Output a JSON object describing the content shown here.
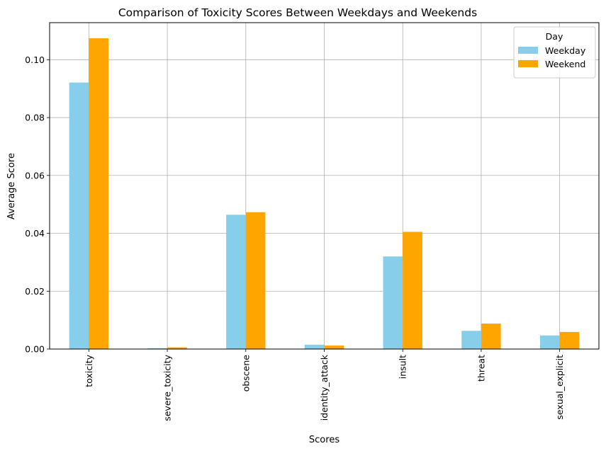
{
  "chart_data": {
    "type": "bar",
    "title": "Comparison of Toxicity Scores Between Weekdays and Weekends",
    "xlabel": "Scores",
    "ylabel": "Average Score",
    "categories": [
      "toxicity",
      "severe_toxicity",
      "obscene",
      "identity_attack",
      "insult",
      "threat",
      "sexual_explicit"
    ],
    "series": [
      {
        "name": "Weekday",
        "color": "#87ceeb",
        "values": [
          0.0921,
          0.0003,
          0.0464,
          0.0015,
          0.032,
          0.0063,
          0.0047
        ]
      },
      {
        "name": "Weekend",
        "color": "#ffa500",
        "values": [
          0.1074,
          0.0006,
          0.0473,
          0.0012,
          0.0405,
          0.0088,
          0.0059
        ]
      }
    ],
    "ylim": [
      0,
      0.1128
    ],
    "yticks": [
      0.0,
      0.02,
      0.04,
      0.06,
      0.08,
      0.1
    ],
    "ytick_labels": [
      "0.00",
      "0.02",
      "0.04",
      "0.06",
      "0.08",
      "0.10"
    ],
    "grid": true,
    "legend": {
      "title": "Day",
      "position": "top-right"
    }
  }
}
